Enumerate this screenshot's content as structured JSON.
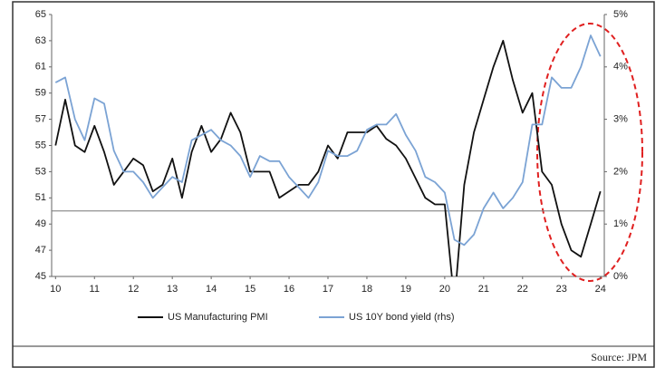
{
  "chart_data": {
    "type": "line",
    "x": [
      10,
      10.25,
      10.5,
      10.75,
      11,
      11.25,
      11.5,
      11.75,
      12,
      12.25,
      12.5,
      12.75,
      13,
      13.25,
      13.5,
      13.75,
      14,
      14.25,
      14.5,
      14.75,
      15,
      15.25,
      15.5,
      15.75,
      16,
      16.25,
      16.5,
      16.75,
      17,
      17.25,
      17.5,
      17.75,
      18,
      18.25,
      18.5,
      18.75,
      19,
      19.25,
      19.5,
      19.75,
      20,
      20.25,
      20.5,
      20.75,
      21,
      21.25,
      21.5,
      21.75,
      22,
      22.25,
      22.5,
      22.75,
      23,
      23.25,
      23.5,
      23.75,
      24
    ],
    "series": [
      {
        "name": "US Manufacturing PMI",
        "color": "#111111",
        "values": [
          55,
          58.5,
          55,
          54.5,
          56.5,
          54.5,
          52,
          53,
          54,
          53.5,
          51.5,
          52,
          54,
          51,
          54.5,
          56.5,
          54.5,
          55.5,
          57.5,
          56,
          53,
          53,
          53,
          51,
          51.5,
          52,
          52,
          53,
          55,
          54,
          56,
          56,
          56,
          56.5,
          55.5,
          55,
          54,
          52.5,
          51,
          50.5,
          50.5,
          43,
          52,
          56,
          58.5,
          61,
          63,
          60,
          57.5,
          59,
          53,
          52,
          49,
          47,
          46.5,
          49,
          51.5
        ]
      },
      {
        "name": "US 10Y bond yield (rhs)",
        "color": "#7ba3d4",
        "axis": "y2",
        "values": [
          3.7,
          3.8,
          3.0,
          2.6,
          3.4,
          3.3,
          2.4,
          2.0,
          2.0,
          1.8,
          1.5,
          1.7,
          1.9,
          1.8,
          2.6,
          2.7,
          2.8,
          2.6,
          2.5,
          2.3,
          1.9,
          2.3,
          2.2,
          2.2,
          1.9,
          1.7,
          1.5,
          1.8,
          2.4,
          2.3,
          2.3,
          2.4,
          2.8,
          2.9,
          2.9,
          3.1,
          2.7,
          2.4,
          1.9,
          1.8,
          1.6,
          0.7,
          0.6,
          0.8,
          1.3,
          1.6,
          1.3,
          1.5,
          1.8,
          2.9,
          2.9,
          3.8,
          3.6,
          3.6,
          4.0,
          4.6,
          4.2
        ]
      }
    ],
    "xlim": [
      9.9,
      24.1
    ],
    "xticks": [
      10,
      11,
      12,
      13,
      14,
      15,
      16,
      17,
      18,
      19,
      20,
      21,
      22,
      23,
      24
    ],
    "ylim": [
      45,
      65
    ],
    "yticks": [
      45,
      47,
      49,
      51,
      53,
      55,
      57,
      59,
      61,
      63,
      65
    ],
    "y2lim": [
      0,
      5
    ],
    "y2ticks": [
      {
        "value": 0,
        "label": "0%"
      },
      {
        "value": 1,
        "label": "1%"
      },
      {
        "value": 2,
        "label": "2%"
      },
      {
        "value": 3,
        "label": "3%"
      },
      {
        "value": 4,
        "label": "4%"
      },
      {
        "value": 5,
        "label": "5%"
      }
    ],
    "reference_line": 50,
    "source": "Source: JPM"
  }
}
